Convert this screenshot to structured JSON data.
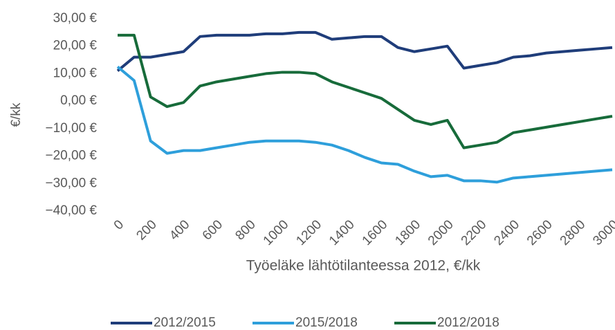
{
  "chart_data": {
    "type": "line",
    "y_label": "€/kk",
    "x_label": "Työeläke lähtötilanteessa 2012, €/kk",
    "x": [
      0,
      100,
      200,
      300,
      400,
      500,
      600,
      700,
      800,
      900,
      1000,
      1100,
      1200,
      1300,
      1400,
      1500,
      1600,
      1700,
      1800,
      1900,
      2000,
      2100,
      2200,
      2300,
      2400,
      2500,
      2600,
      2700,
      2800,
      2900,
      3000
    ],
    "series": [
      {
        "name": "2012/2015",
        "color": "#1f3d7a",
        "values": [
          11,
          16,
          16,
          17,
          18,
          23.5,
          24,
          24,
          24,
          24.5,
          24.5,
          25,
          25,
          22.5,
          23,
          23.5,
          23.5,
          19.5,
          18,
          19,
          20,
          12,
          13,
          14,
          16,
          16.5,
          17.5,
          18,
          18.5,
          19,
          19.5
        ]
      },
      {
        "name": "2015/2018",
        "color": "#2e9fdb",
        "values": [
          12.5,
          7.5,
          -14.5,
          -19,
          -18,
          -18,
          -17,
          -16,
          -15,
          -14.5,
          -14.5,
          -14.5,
          -15,
          -16,
          -18,
          -20.5,
          -22.5,
          -23,
          -25.5,
          -27.5,
          -27,
          -29,
          -29,
          -29.5,
          -28,
          -27.5,
          -27,
          -26.5,
          -26,
          -25.5,
          -25
        ]
      },
      {
        "name": "2012/2018",
        "color": "#176b3a",
        "values": [
          24,
          24,
          1.5,
          -2,
          -0.5,
          5.5,
          7,
          8,
          9,
          10,
          10.5,
          10.5,
          10,
          7,
          5,
          3,
          1,
          -3,
          -7,
          -8.5,
          -7,
          -17,
          -16,
          -15,
          -11.5,
          -10.5,
          -9.5,
          -8.5,
          -7.5,
          -6.5,
          -5.5
        ]
      }
    ],
    "xlim": [
      0,
      3000
    ],
    "xticks": [
      0,
      200,
      400,
      600,
      800,
      1000,
      1200,
      1400,
      1600,
      1800,
      2000,
      2200,
      2400,
      2600,
      2800,
      3000
    ],
    "ylim": [
      -40,
      30
    ],
    "yticks": [
      {
        "value": -40,
        "label": "−40,00 €"
      },
      {
        "value": -30,
        "label": "−30,00 €"
      },
      {
        "value": -20,
        "label": "−20,00 €"
      },
      {
        "value": -10,
        "label": "−10,00 €"
      },
      {
        "value": 0,
        "label": "0,00 €"
      },
      {
        "value": 10,
        "label": "10,00 €"
      },
      {
        "value": 20,
        "label": "20,00 €"
      },
      {
        "value": 30,
        "label": "30,00 €"
      }
    ],
    "grid": false,
    "legend": "bottom"
  }
}
